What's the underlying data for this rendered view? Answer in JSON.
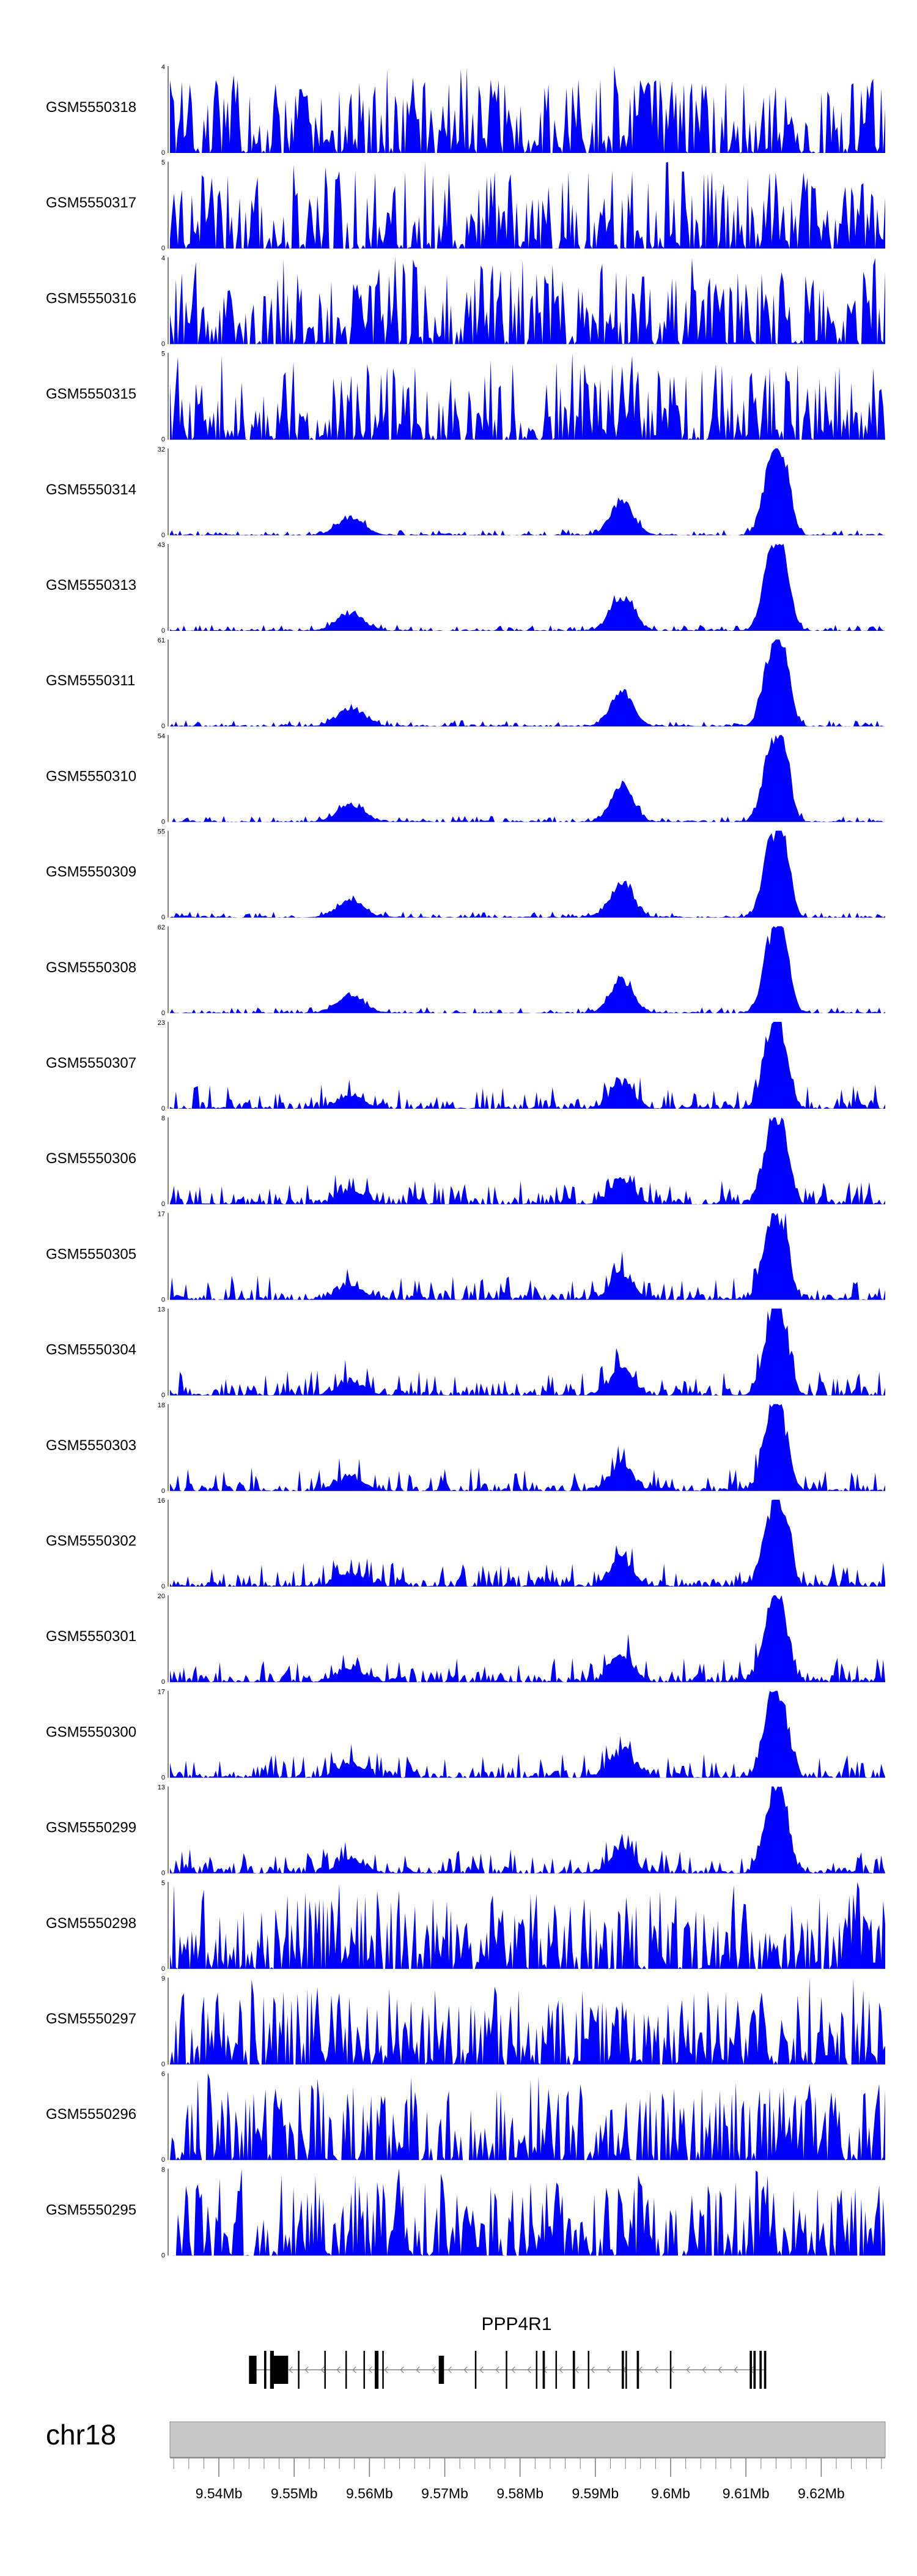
{
  "chart_data": {
    "type": "area",
    "title": "",
    "chromosome": "chr18",
    "xlim": [
      9.5335,
      9.6285
    ],
    "xunit": "Mb",
    "xticks": [
      9.54,
      9.55,
      9.56,
      9.57,
      9.58,
      9.59,
      9.6,
      9.61,
      9.62
    ],
    "xtick_labels": [
      "9.54Mb",
      "9.55Mb",
      "9.56Mb",
      "9.57Mb",
      "9.58Mb",
      "9.59Mb",
      "9.6Mb",
      "9.61Mb",
      "9.62Mb"
    ],
    "fill_color": "#0000ff",
    "tracks": [
      {
        "name": "GSM5550318",
        "ymax": 4,
        "pattern": "noise"
      },
      {
        "name": "GSM5550317",
        "ymax": 5,
        "pattern": "noise"
      },
      {
        "name": "GSM5550316",
        "ymax": 4,
        "pattern": "noise"
      },
      {
        "name": "GSM5550315",
        "ymax": 5,
        "pattern": "noise"
      },
      {
        "name": "GSM5550314",
        "ymax": 32,
        "pattern": "peaks"
      },
      {
        "name": "GSM5550313",
        "ymax": 43,
        "pattern": "peaks"
      },
      {
        "name": "GSM5550311",
        "ymax": 61,
        "pattern": "peaks"
      },
      {
        "name": "GSM5550310",
        "ymax": 54,
        "pattern": "peaks"
      },
      {
        "name": "GSM5550309",
        "ymax": 55,
        "pattern": "peaks"
      },
      {
        "name": "GSM5550308",
        "ymax": 62,
        "pattern": "peaks"
      },
      {
        "name": "GSM5550307",
        "ymax": 23,
        "pattern": "mixed"
      },
      {
        "name": "GSM5550306",
        "ymax": 8,
        "pattern": "mixed"
      },
      {
        "name": "GSM5550305",
        "ymax": 17,
        "pattern": "mixed"
      },
      {
        "name": "GSM5550304",
        "ymax": 13,
        "pattern": "mixed"
      },
      {
        "name": "GSM5550303",
        "ymax": 18,
        "pattern": "mixed"
      },
      {
        "name": "GSM5550302",
        "ymax": 16,
        "pattern": "mixed"
      },
      {
        "name": "GSM5550301",
        "ymax": 20,
        "pattern": "mixed"
      },
      {
        "name": "GSM5550300",
        "ymax": 17,
        "pattern": "mixed"
      },
      {
        "name": "GSM5550299",
        "ymax": 13,
        "pattern": "mixed"
      },
      {
        "name": "GSM5550298",
        "ymax": 5,
        "pattern": "noise"
      },
      {
        "name": "GSM5550297",
        "ymax": 9,
        "pattern": "noise"
      },
      {
        "name": "GSM5550296",
        "ymax": 6,
        "pattern": "noise"
      },
      {
        "name": "GSM5550295",
        "ymax": 8,
        "pattern": "noise"
      }
    ],
    "peaks": [
      {
        "center": 9.6135,
        "width": 0.0012,
        "height": 1.0
      },
      {
        "center": 9.6152,
        "width": 0.0009,
        "height": 0.65
      },
      {
        "center": 9.5935,
        "width": 0.0015,
        "height": 0.45
      },
      {
        "center": 9.5575,
        "width": 0.0018,
        "height": 0.22
      }
    ],
    "gene": {
      "name": "PPP4R1",
      "start": 9.544,
      "end": 9.6127,
      "strand": "-",
      "exons": [
        [
          9.544,
          9.545
        ],
        [
          9.546,
          9.5463
        ],
        [
          9.5468,
          9.5473
        ],
        [
          9.5473,
          9.5492
        ],
        [
          9.5505,
          9.5507
        ],
        [
          9.554,
          9.5542
        ],
        [
          9.5568,
          9.557
        ],
        [
          9.5592,
          9.5594
        ],
        [
          9.5607,
          9.5612
        ],
        [
          9.5617,
          9.5619
        ],
        [
          9.5692,
          9.5699
        ],
        [
          9.574,
          9.5742
        ],
        [
          9.5781,
          9.5783
        ],
        [
          9.5821,
          9.5823
        ],
        [
          9.583,
          9.5833
        ],
        [
          9.5847,
          9.5849
        ],
        [
          9.587,
          9.5873
        ],
        [
          9.589,
          9.5892
        ],
        [
          9.5935,
          9.5938
        ],
        [
          9.594,
          9.5942
        ],
        [
          9.5955,
          9.5958
        ],
        [
          9.5999,
          9.6001
        ],
        [
          9.6105,
          9.6108
        ],
        [
          9.611,
          9.6113
        ],
        [
          9.6118,
          9.6121
        ],
        [
          9.6124,
          9.6127
        ]
      ]
    }
  }
}
